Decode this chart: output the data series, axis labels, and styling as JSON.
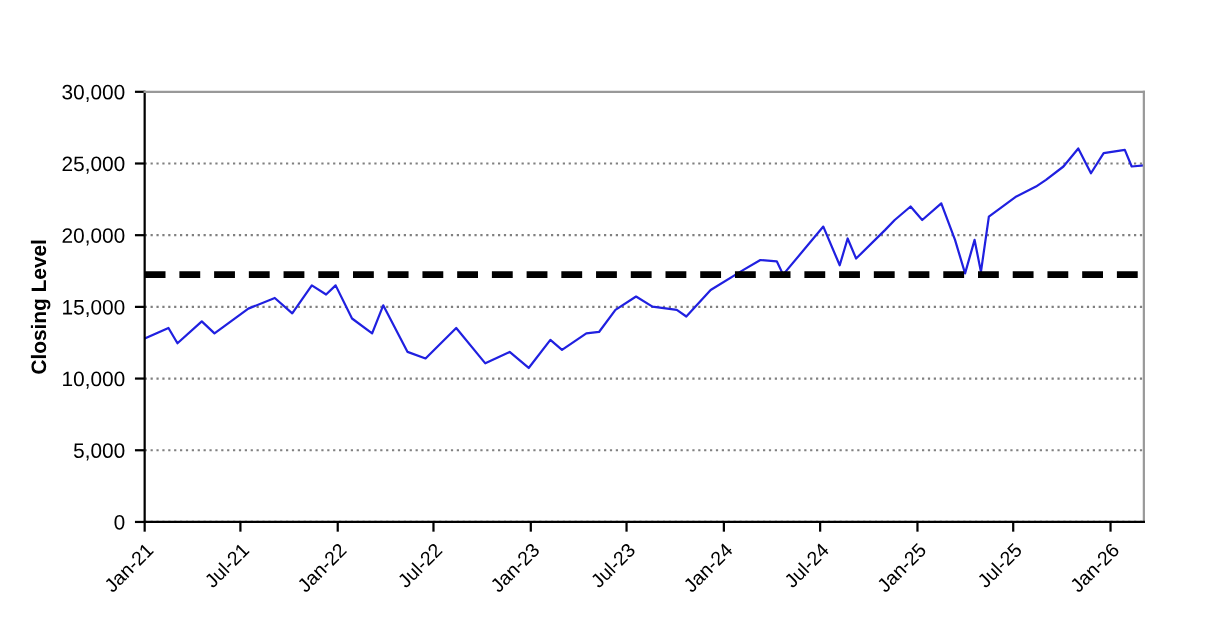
{
  "chart_data": {
    "type": "line",
    "ylabel": "Closing Level",
    "x": [
      "2021-01-01",
      "2021-02-15",
      "2021-03-04",
      "2021-04-19",
      "2021-05-13",
      "2021-07-16",
      "2021-09-04",
      "2021-10-07",
      "2021-11-13",
      "2021-12-10",
      "2021-12-28",
      "2022-01-28",
      "2022-03-07",
      "2022-03-28",
      "2022-05-13",
      "2022-06-16",
      "2022-08-13",
      "2022-10-07",
      "2022-11-22",
      "2022-12-28",
      "2023-02-07",
      "2023-03-01",
      "2023-04-16",
      "2023-05-10",
      "2023-06-10",
      "2023-07-19",
      "2023-08-19",
      "2023-10-04",
      "2023-10-22",
      "2023-12-07",
      "2024-02-07",
      "2024-03-10",
      "2024-04-10",
      "2024-04-22",
      "2024-07-07",
      "2024-08-07",
      "2024-08-22",
      "2024-09-07",
      "2024-11-01",
      "2024-11-19",
      "2024-12-19",
      "2025-01-10",
      "2025-02-15",
      "2025-03-13",
      "2025-04-01",
      "2025-04-19",
      "2025-05-01",
      "2025-05-16",
      "2025-07-07",
      "2025-08-13",
      "2025-09-01",
      "2025-10-04",
      "2025-11-01",
      "2025-11-25",
      "2025-12-19",
      "2026-01-28",
      "2026-02-10",
      "2026-03-04"
    ],
    "series": [
      {
        "color": "#2020e0",
        "values": [
          12790,
          13530,
          12460,
          13990,
          13150,
          14880,
          15620,
          14550,
          16500,
          15860,
          16500,
          14190,
          13150,
          15110,
          11860,
          11400,
          13530,
          11060,
          11860,
          10740,
          12700,
          12000,
          13150,
          13250,
          14790,
          15720,
          15020,
          14790,
          14330,
          16180,
          17580,
          18270,
          18180,
          17250,
          20600,
          17900,
          19770,
          18370,
          20370,
          21060,
          22000,
          21060,
          22220,
          19670,
          17340,
          19670,
          17440,
          21300,
          22700,
          23390,
          23860,
          24790,
          26050,
          24320,
          25720,
          25950,
          24790,
          24870
        ]
      }
    ],
    "xlim": [
      "2021-01-01",
      "2026-03-05"
    ],
    "xticks": [
      {
        "value": "2021-01-01",
        "label": "Jan-21"
      },
      {
        "value": "2021-07-01",
        "label": "Jul-21"
      },
      {
        "value": "2022-01-01",
        "label": "Jan-22"
      },
      {
        "value": "2022-07-01",
        "label": "Jul-22"
      },
      {
        "value": "2023-01-01",
        "label": "Jan-23"
      },
      {
        "value": "2023-07-01",
        "label": "Jul-23"
      },
      {
        "value": "2024-01-01",
        "label": "Jan-24"
      },
      {
        "value": "2024-07-01",
        "label": "Jul-24"
      },
      {
        "value": "2025-01-01",
        "label": "Jan-25"
      },
      {
        "value": "2025-07-01",
        "label": "Jul-25"
      },
      {
        "value": "2026-01-01",
        "label": "Jan-26"
      }
    ],
    "ylim": [
      0,
      30000
    ],
    "yticks": [
      0,
      {
        "value": 5000,
        "label": "5,000"
      },
      {
        "value": 10000,
        "label": "10,000"
      },
      {
        "value": 15000,
        "label": "15,000"
      },
      {
        "value": 20000,
        "label": "20,000"
      },
      {
        "value": 25000,
        "label": "25,000"
      },
      {
        "value": 30000,
        "label": "30,000"
      }
    ],
    "ref_lines": [
      {
        "axis": "y",
        "value": 17250,
        "color": "#000000",
        "line_style": "dashed"
      }
    ],
    "grid": "y",
    "marker": "none",
    "line_style": "solid"
  }
}
